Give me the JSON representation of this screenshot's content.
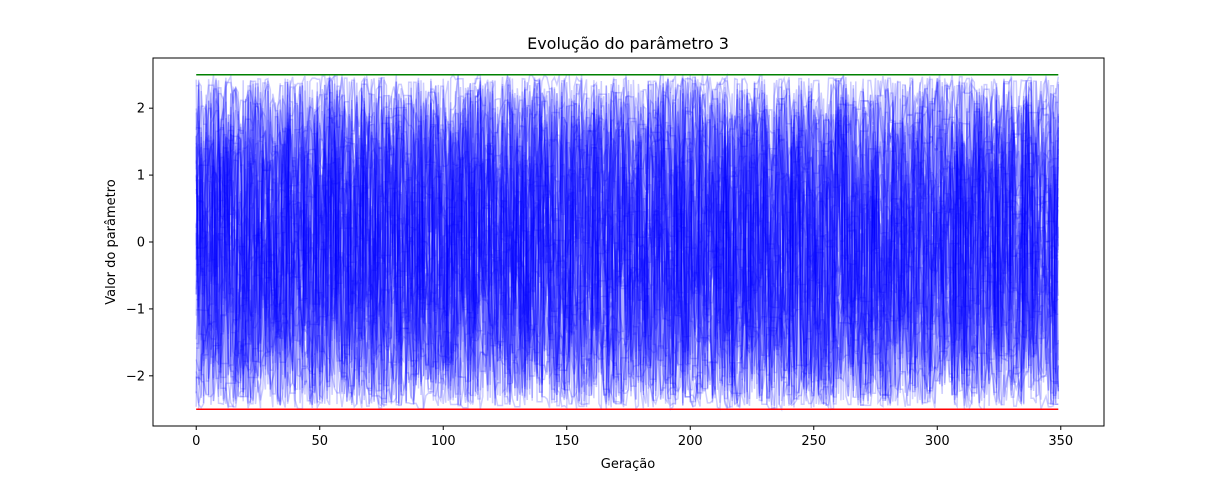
{
  "chart_data": {
    "type": "line",
    "title": "Evolução do parâmetro 3",
    "xlabel": "Geração",
    "ylabel": "Valor do parâmetro",
    "xlim": [
      -17.5,
      367.5
    ],
    "ylim": [
      -2.75,
      2.75
    ],
    "x_ticks": [
      0,
      50,
      100,
      150,
      200,
      250,
      300,
      350
    ],
    "x_tick_labels": [
      "0",
      "50",
      "100",
      "150",
      "200",
      "250",
      "300",
      "350"
    ],
    "y_ticks": [
      -2,
      -1,
      0,
      1,
      2
    ],
    "y_tick_labels": [
      "−2",
      "−1",
      "0",
      "1",
      "2"
    ],
    "grid": false,
    "generations": 350,
    "series_count": 50,
    "series_color": "#0000ff",
    "series_alpha": 0.2,
    "series_range": [
      -2.5,
      2.5
    ],
    "upper_bound": {
      "y": 2.5,
      "x": [
        0,
        349
      ],
      "color": "#008000"
    },
    "lower_bound": {
      "y": -2.5,
      "x": [
        0,
        349
      ],
      "color": "#ff0000"
    }
  }
}
